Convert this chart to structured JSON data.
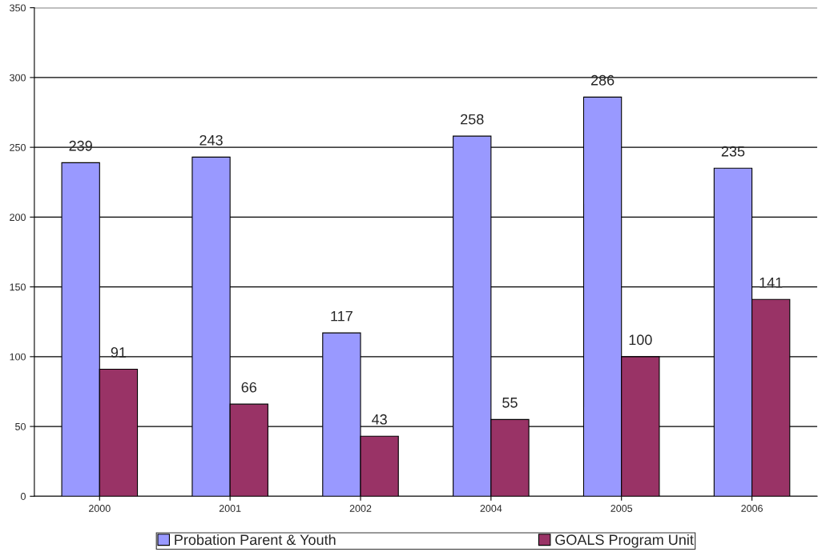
{
  "chart_data": {
    "type": "bar",
    "categories": [
      "2000",
      "2001",
      "2002",
      "2004",
      "2005",
      "2006"
    ],
    "series": [
      {
        "name": "Probation Parent & Youth",
        "color": "#9999ff",
        "values": [
          239,
          243,
          117,
          258,
          286,
          235
        ]
      },
      {
        "name": "GOALS Program Unit",
        "color": "#993366",
        "values": [
          91,
          66,
          43,
          55,
          100,
          141
        ]
      }
    ],
    "ylim": [
      0,
      350
    ],
    "yticks": [
      0,
      50,
      100,
      150,
      200,
      250,
      300,
      350
    ],
    "grid": "y",
    "legend": "bottom",
    "data_labels": true
  }
}
